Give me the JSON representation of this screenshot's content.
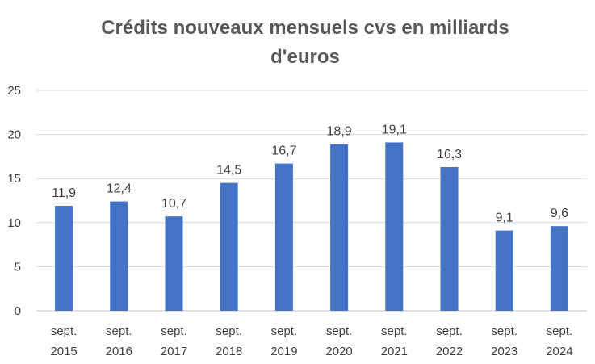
{
  "chart_data": {
    "type": "bar",
    "title_lines": [
      "Crédits nouveaux mensuels cvs en milliards",
      "d'euros"
    ],
    "categories": [
      [
        "sept.",
        "2015"
      ],
      [
        "sept.",
        "2016"
      ],
      [
        "sept.",
        "2017"
      ],
      [
        "sept.",
        "2018"
      ],
      [
        "sept.",
        "2019"
      ],
      [
        "sept.",
        "2020"
      ],
      [
        "sept.",
        "2021"
      ],
      [
        "sept.",
        "2022"
      ],
      [
        "sept.",
        "2023"
      ],
      [
        "sept.",
        "2024"
      ]
    ],
    "values": [
      11.9,
      12.4,
      10.7,
      14.5,
      16.7,
      18.9,
      19.1,
      16.3,
      9.1,
      9.6
    ],
    "value_labels": [
      "11,9",
      "12,4",
      "10,7",
      "14,5",
      "16,7",
      "18,9",
      "19,1",
      "16,3",
      "9,1",
      "9,6"
    ],
    "yticks": [
      0,
      5,
      10,
      15,
      20,
      25
    ],
    "ylim": [
      0,
      25
    ],
    "grid": true,
    "bar_color": "#4472c4"
  }
}
